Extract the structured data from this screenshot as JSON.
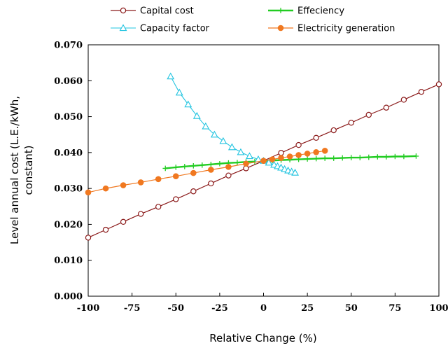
{
  "chart_data": {
    "type": "line",
    "xlabel": "Relative Change (%)",
    "ylabel_lines": [
      "Level annual cost (L.E./kWh,",
      "constant)"
    ],
    "xlim": [
      -100,
      100
    ],
    "ylim": [
      0.0,
      0.07
    ],
    "x_ticks": [
      -100,
      -75,
      -50,
      -25,
      0,
      25,
      50,
      75,
      100
    ],
    "x_tick_labels": [
      "-100",
      "-75",
      "-50",
      "-25",
      "0",
      "25",
      "50",
      "75",
      "100"
    ],
    "y_ticks": [
      0,
      0.01,
      0.02,
      0.03,
      0.04,
      0.05,
      0.06,
      0.07
    ],
    "y_tick_labels": [
      "0.000",
      "0.010",
      "0.020",
      "0.030",
      "0.040",
      "0.050",
      "0.060",
      "0.070"
    ],
    "grid": false,
    "legend_position": "top",
    "series": [
      {
        "name": "Capital cost",
        "color": "#8b1a1a",
        "marker": "open-circle",
        "x": [
          -100,
          -90,
          -80,
          -70,
          -60,
          -50,
          -40,
          -30,
          -20,
          -10,
          0,
          10,
          20,
          30,
          40,
          50,
          60,
          70,
          80,
          90,
          100
        ],
        "y": [
          0.0163,
          0.0185,
          0.0207,
          0.0229,
          0.0249,
          0.027,
          0.0292,
          0.0314,
          0.0336,
          0.0356,
          0.0377,
          0.0399,
          0.0421,
          0.0441,
          0.0462,
          0.0483,
          0.0505,
          0.0525,
          0.0547,
          0.0569,
          0.059
        ]
      },
      {
        "name": "Effeciency",
        "color": "#22cc22",
        "marker": "plus",
        "x": [
          -56,
          -50,
          -45,
          -40,
          -35,
          -30,
          -25,
          -20,
          -15,
          -10,
          -5,
          0,
          5,
          10,
          15,
          20,
          25,
          30,
          35,
          40,
          45,
          50,
          55,
          60,
          65,
          70,
          75,
          80,
          87
        ],
        "y": [
          0.0356,
          0.0359,
          0.0361,
          0.0363,
          0.0365,
          0.0367,
          0.0369,
          0.0371,
          0.0372,
          0.0374,
          0.0375,
          0.0377,
          0.0378,
          0.0379,
          0.038,
          0.0381,
          0.0382,
          0.0383,
          0.0384,
          0.0384,
          0.0385,
          0.0386,
          0.0386,
          0.0387,
          0.0388,
          0.0388,
          0.0389,
          0.0389,
          0.039
        ]
      },
      {
        "name": "Capacity factor",
        "color": "#22c4e0",
        "marker": "open-triangle",
        "x": [
          -53,
          -48,
          -43,
          -38,
          -33,
          -28,
          -23,
          -18,
          -13,
          -8,
          -3,
          0,
          3,
          6,
          8,
          10,
          12,
          14,
          16,
          18
        ],
        "y": [
          0.0612,
          0.0567,
          0.0534,
          0.0502,
          0.0473,
          0.045,
          0.0432,
          0.0415,
          0.0401,
          0.039,
          0.0381,
          0.0377,
          0.0372,
          0.0366,
          0.0362,
          0.0358,
          0.0354,
          0.035,
          0.0347,
          0.0344
        ]
      },
      {
        "name": "Electricity generation",
        "color": "#f07820",
        "marker": "filled-circle",
        "x": [
          -100,
          -90,
          -80,
          -70,
          -60,
          -50,
          -40,
          -30,
          -20,
          -10,
          0,
          5,
          10,
          15,
          20,
          25,
          30,
          35
        ],
        "y": [
          0.0289,
          0.03,
          0.0309,
          0.0317,
          0.0326,
          0.0334,
          0.0343,
          0.0352,
          0.036,
          0.0369,
          0.0377,
          0.0381,
          0.0385,
          0.0389,
          0.0393,
          0.0397,
          0.0401,
          0.0405
        ]
      }
    ]
  }
}
